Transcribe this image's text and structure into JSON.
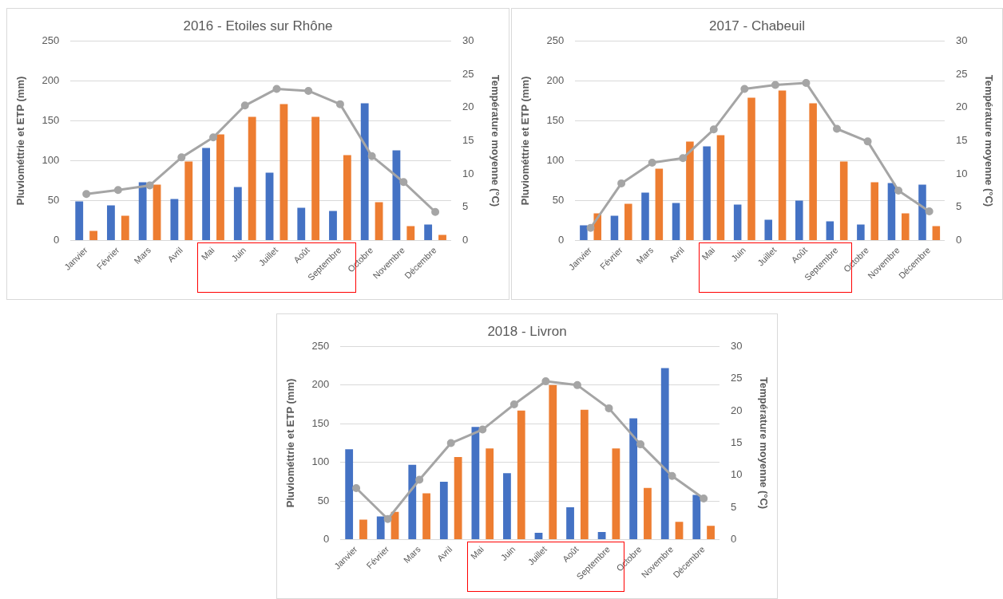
{
  "chart_data": [
    {
      "type": "bar",
      "title": "2016 - Etoiles sur Rhône",
      "ylabel": "Pluviométtrie et ETP (mm)",
      "y2label": "Température moyenne (°C)",
      "categories": [
        "Janvier",
        "Février",
        "Mars",
        "Avril",
        "Mai",
        "Juin",
        "Juillet",
        "Août",
        "Septembre",
        "Octobre",
        "Novembre",
        "Décembre"
      ],
      "series": [
        {
          "color": "#4472c4",
          "values": [
            49,
            44,
            73,
            52,
            116,
            67,
            85,
            41,
            37,
            172,
            113,
            20
          ]
        },
        {
          "color": "#ed7d31",
          "values": [
            12,
            31,
            70,
            99,
            133,
            155,
            171,
            155,
            107,
            48,
            18,
            7
          ]
        },
        {
          "type": "line",
          "axis": "y2",
          "color": "#a5a5a5",
          "values": [
            7.0,
            7.6,
            8.3,
            12.5,
            15.5,
            20.3,
            22.8,
            22.5,
            20.5,
            12.7,
            8.8,
            4.3
          ]
        }
      ],
      "ylim": [
        0,
        250
      ],
      "yticks": [
        0,
        50,
        100,
        150,
        200,
        250
      ],
      "y2lim": [
        0,
        30
      ],
      "y2ticks": [
        0,
        5,
        10,
        15,
        20,
        25,
        30
      ],
      "grid": "y",
      "legend": false,
      "marker": "circle"
    },
    {
      "type": "bar",
      "title": "2017 - Chabeuil",
      "ylabel": "Pluviométtrie et ETP (mm)",
      "y2label": "Température moyenne (°C)",
      "categories": [
        "Janvier",
        "Février",
        "Mars",
        "Avril",
        "Mai",
        "Juin",
        "Juillet",
        "Août",
        "Septembre",
        "Octobre",
        "Novembre",
        "Décembre"
      ],
      "series": [
        {
          "color": "#4472c4",
          "values": [
            19,
            31,
            60,
            47,
            118,
            45,
            26,
            50,
            24,
            20,
            72,
            70
          ]
        },
        {
          "color": "#ed7d31",
          "values": [
            34,
            46,
            90,
            124,
            132,
            179,
            188,
            172,
            99,
            73,
            34,
            18
          ]
        },
        {
          "type": "line",
          "axis": "y2",
          "color": "#a5a5a5",
          "values": [
            1.9,
            8.6,
            11.7,
            12.4,
            16.7,
            22.8,
            23.4,
            23.7,
            16.8,
            14.9,
            7.5,
            4.4
          ]
        }
      ],
      "ylim": [
        0,
        250
      ],
      "yticks": [
        0,
        50,
        100,
        150,
        200,
        250
      ],
      "y2lim": [
        0,
        30
      ],
      "y2ticks": [
        0,
        5,
        10,
        15,
        20,
        25,
        30
      ],
      "grid": "y",
      "legend": false,
      "marker": "circle"
    },
    {
      "type": "bar",
      "title": "2018 - Livron",
      "ylabel": "Pluviométtrie et ETP (mm)",
      "y2label": "Température moyenne (°C)",
      "categories": [
        "Janvier",
        "Février",
        "Mars",
        "Avril",
        "Mai",
        "Juin",
        "Juillet",
        "Août",
        "Septembre",
        "Octobre",
        "Novembre",
        "Décembre"
      ],
      "series": [
        {
          "color": "#4472c4",
          "values": [
            117,
            30,
            97,
            75,
            146,
            86,
            9,
            42,
            10,
            157,
            222,
            58
          ]
        },
        {
          "color": "#ed7d31",
          "values": [
            26,
            36,
            60,
            107,
            118,
            167,
            200,
            168,
            118,
            67,
            23,
            18
          ]
        },
        {
          "type": "line",
          "axis": "y2",
          "color": "#a5a5a5",
          "values": [
            8.0,
            3.2,
            9.3,
            15.0,
            17.1,
            21.0,
            24.6,
            24.0,
            20.4,
            14.8,
            9.9,
            6.4
          ]
        }
      ],
      "ylim": [
        0,
        250
      ],
      "yticks": [
        0,
        50,
        100,
        150,
        200,
        250
      ],
      "y2lim": [
        0,
        30
      ],
      "y2ticks": [
        0,
        5,
        10,
        15,
        20,
        25,
        30
      ],
      "grid": "y",
      "legend": false,
      "marker": "circle"
    }
  ]
}
